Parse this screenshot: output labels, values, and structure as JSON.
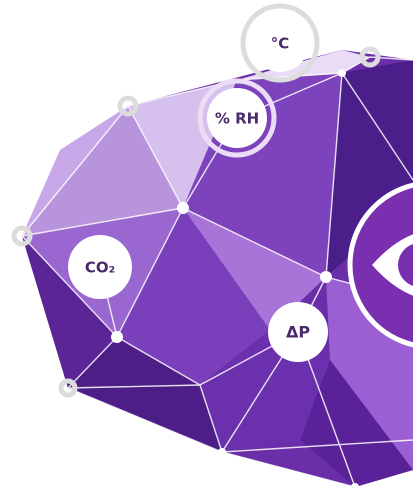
{
  "nodes": [
    {
      "label": "°C"
    },
    {
      "label": "% RH"
    },
    {
      "label": "CO₂"
    },
    {
      "label": "ΔP"
    }
  ]
}
